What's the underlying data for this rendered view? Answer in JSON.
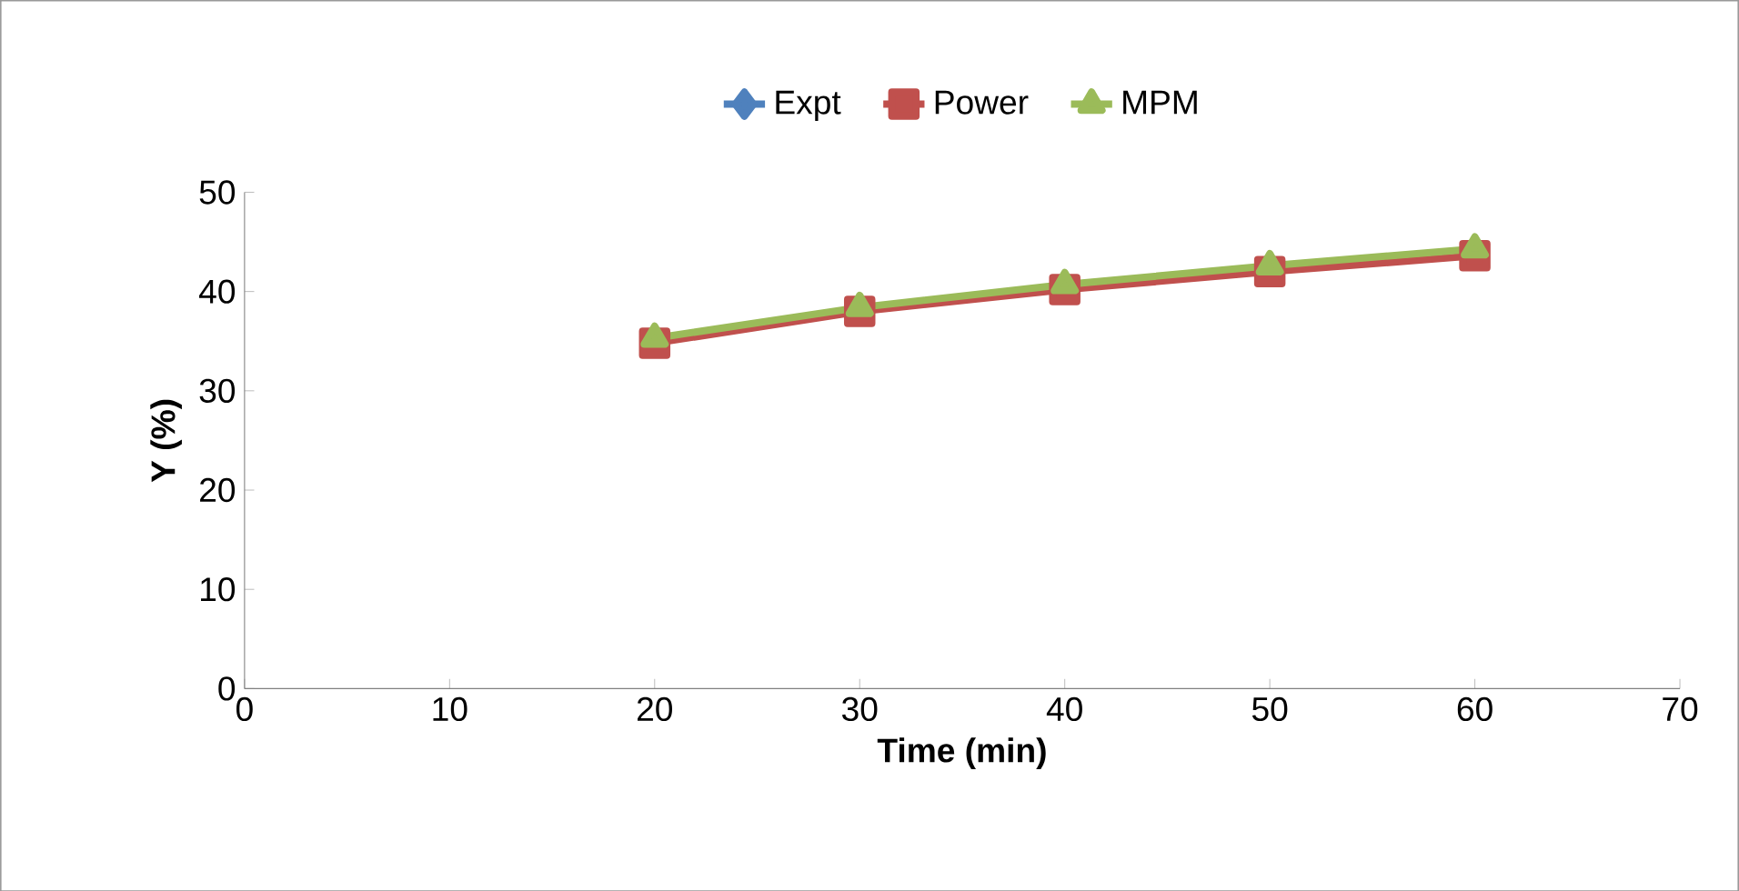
{
  "chart_data": {
    "type": "line",
    "xlabel": "Time (min)",
    "ylabel": "Y (%)",
    "x": [
      20,
      30,
      40,
      50,
      60
    ],
    "series": [
      {
        "name": "Expt",
        "color": "#4f81bd",
        "marker": "diamond",
        "values": [
          null,
          null,
          null,
          null,
          null
        ]
      },
      {
        "name": "Power",
        "color": "#c0504d",
        "marker": "square",
        "values": [
          34.8,
          38.0,
          40.2,
          42.0,
          43.6
        ]
      },
      {
        "name": "MPM",
        "color": "#9bbb59",
        "marker": "triangle",
        "values": [
          35.3,
          38.4,
          40.7,
          42.6,
          44.3
        ]
      }
    ],
    "xlim": [
      0,
      70
    ],
    "xticks": [
      0,
      10,
      20,
      30,
      40,
      50,
      60,
      70
    ],
    "ylim": [
      0,
      50
    ],
    "yticks": [
      0,
      10,
      20,
      30,
      40,
      50
    ],
    "grid": false,
    "legend": "top",
    "line_style": "solid"
  }
}
